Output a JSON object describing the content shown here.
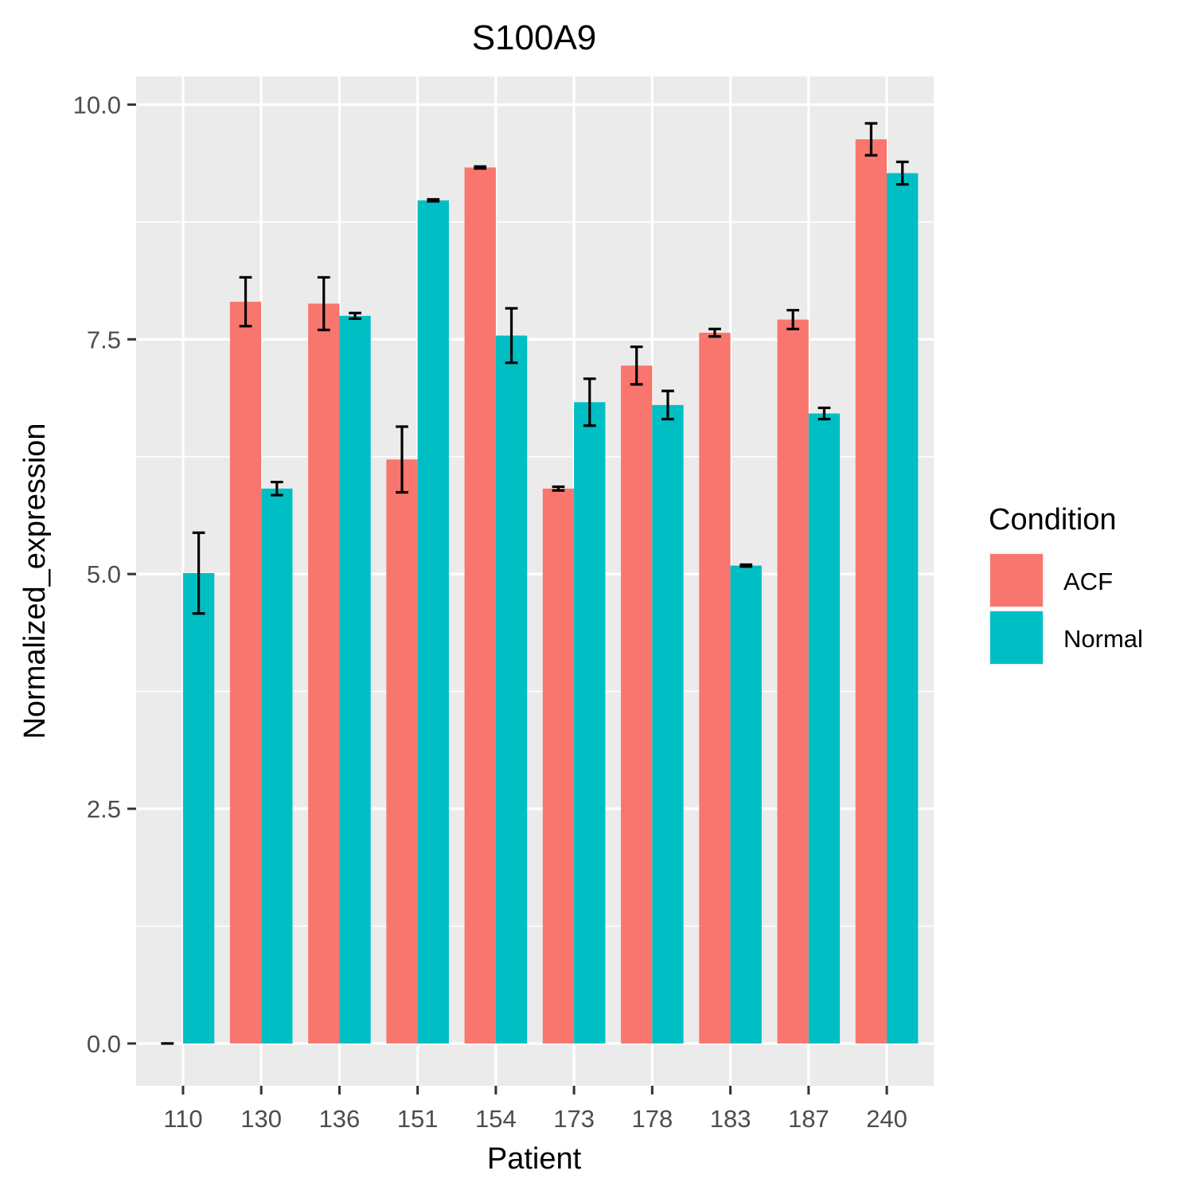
{
  "chart_data": {
    "type": "bar",
    "title": "S100A9",
    "xlabel": "Patient",
    "ylabel": "Normalized_expression",
    "categories": [
      "110",
      "130",
      "136",
      "151",
      "154",
      "173",
      "178",
      "183",
      "187",
      "240"
    ],
    "series": [
      {
        "name": "ACF",
        "color": "#F8766D",
        "values": [
          0.0,
          7.9,
          7.88,
          6.22,
          9.33,
          5.91,
          7.22,
          7.57,
          7.71,
          9.63
        ],
        "errors": [
          0.0,
          0.26,
          0.28,
          0.35,
          0.01,
          0.02,
          0.2,
          0.04,
          0.1,
          0.17
        ]
      },
      {
        "name": "Normal",
        "color": "#00BFC4",
        "values": [
          5.01,
          5.91,
          7.75,
          8.98,
          7.54,
          6.83,
          6.8,
          5.09,
          6.71,
          9.27
        ],
        "errors": [
          0.43,
          0.07,
          0.03,
          0.01,
          0.29,
          0.25,
          0.15,
          0.01,
          0.06,
          0.12
        ]
      }
    ],
    "ylim": [
      -0.45,
      10.3
    ],
    "yticks": [
      0.0,
      2.5,
      5.0,
      7.5,
      10.0
    ],
    "ytick_labels": [
      "0.0",
      "2.5",
      "5.0",
      "7.5",
      "10.0"
    ],
    "grid": true,
    "legend": {
      "title": "Condition",
      "position": "right"
    }
  }
}
